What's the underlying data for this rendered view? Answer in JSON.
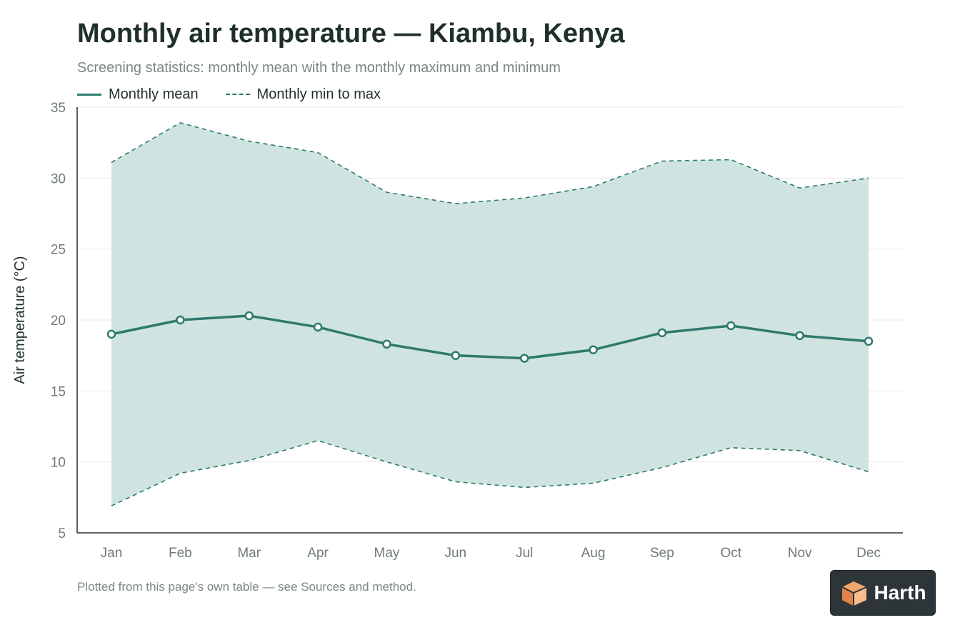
{
  "title": "Monthly air temperature — Kiambu, Kenya",
  "subtitle": "Screening statistics: monthly mean with the monthly maximum and minimum",
  "legend": {
    "mean": "Monthly mean",
    "range": "Monthly min to max"
  },
  "footnote": "Plotted from this page's own table — see Sources and method.",
  "logo": {
    "text": "Harth",
    "icon": "harth-logo-icon"
  },
  "colors": {
    "line": "#2e7a6d",
    "band": "#cfe4e0",
    "grid": "#e6e9e8",
    "axis": "#2a2f2e"
  },
  "chart_data": {
    "type": "line",
    "title": "Monthly air temperature — Kiambu, Kenya",
    "subtitle": "Screening statistics: monthly mean with the monthly maximum and minimum",
    "xlabel": "",
    "ylabel": "Air temperature (°C)",
    "ylim": [
      5,
      35
    ],
    "yticks": [
      5,
      10,
      15,
      20,
      25,
      30,
      35
    ],
    "grid": true,
    "legend_position": "top-left",
    "categories": [
      "Jan",
      "Feb",
      "Mar",
      "Apr",
      "May",
      "Jun",
      "Jul",
      "Aug",
      "Sep",
      "Oct",
      "Nov",
      "Dec"
    ],
    "series": [
      {
        "name": "Monthly mean",
        "style": "solid-with-markers",
        "values": [
          19.0,
          20.0,
          20.3,
          19.5,
          18.3,
          17.5,
          17.3,
          17.9,
          19.1,
          19.6,
          18.9,
          18.5
        ]
      },
      {
        "name": "Monthly max",
        "style": "dashed",
        "values": [
          31.1,
          33.9,
          32.6,
          31.8,
          29.0,
          28.2,
          28.6,
          29.4,
          31.2,
          31.3,
          29.3,
          30.0
        ]
      },
      {
        "name": "Monthly min",
        "style": "dashed",
        "values": [
          6.9,
          9.2,
          10.1,
          11.5,
          10.0,
          8.6,
          8.2,
          8.5,
          9.6,
          11.0,
          10.8,
          9.3
        ]
      }
    ]
  }
}
